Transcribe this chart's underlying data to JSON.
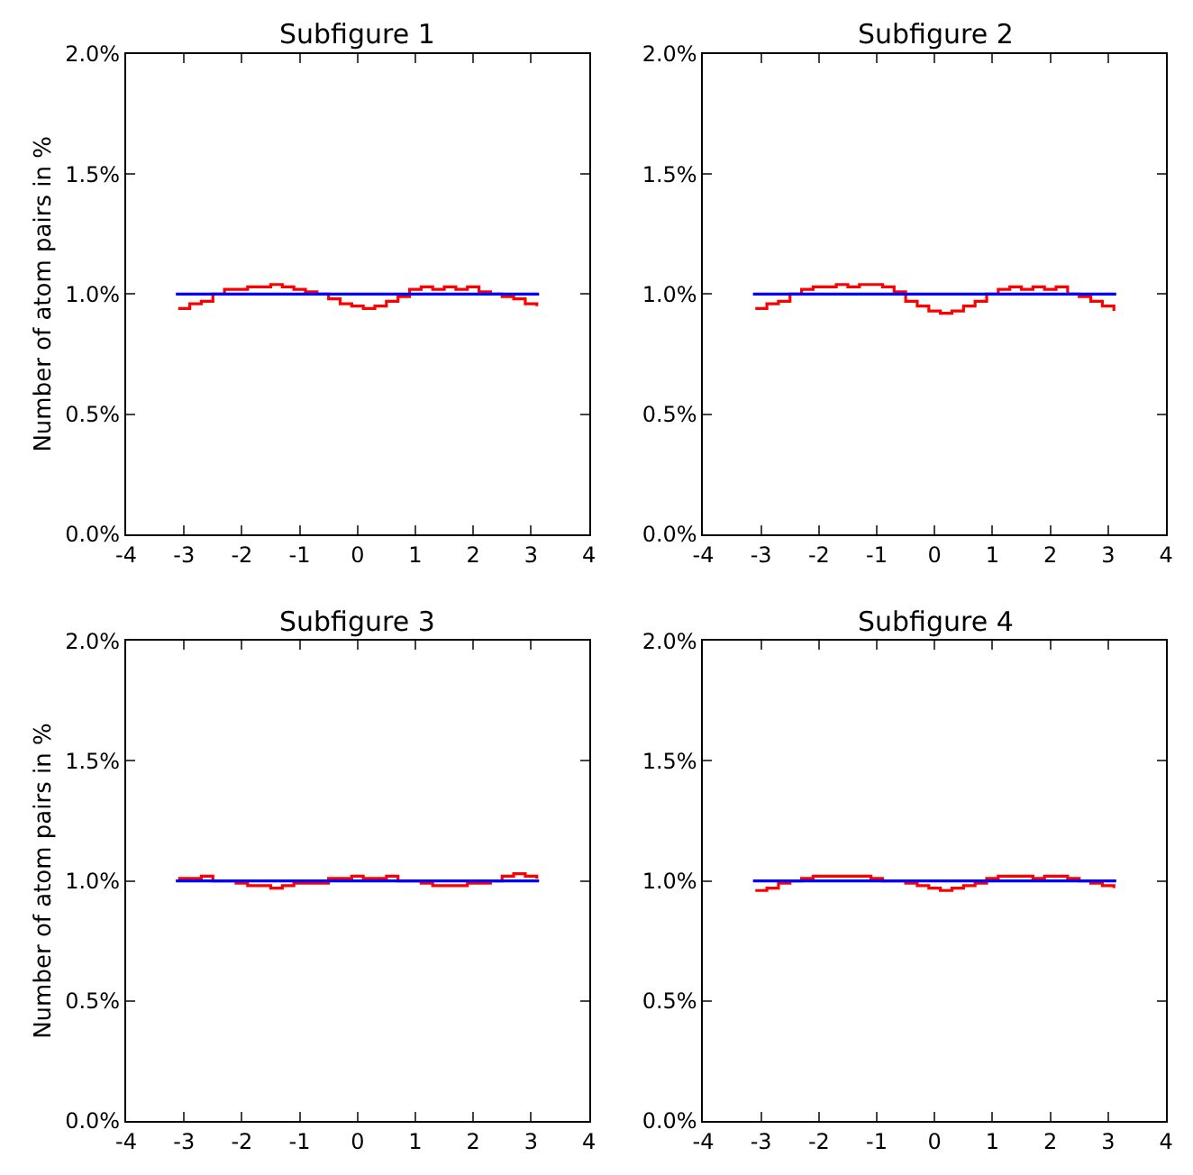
{
  "chart_data": [
    {
      "type": "step",
      "title": "Subfigure 1",
      "ylabel": "Number of atom pairs in %",
      "xlim": [
        -4,
        4
      ],
      "xticks": [
        -4,
        -3,
        -2,
        -1,
        0,
        1,
        2,
        3,
        4
      ],
      "ylim": [
        0,
        2
      ],
      "yticks": [
        {
          "value": 0,
          "label": "0.0%"
        },
        {
          "value": 0.5,
          "label": "0.5%"
        },
        {
          "value": 1,
          "label": "1.0%"
        },
        {
          "value": 1.5,
          "label": "1.5%"
        },
        {
          "value": 2,
          "label": "2.0%"
        }
      ],
      "series": [
        {
          "color": "#ff0000",
          "x": [
            -3.1,
            -2.9,
            -2.7,
            -2.5,
            -2.3,
            -2.1,
            -1.9,
            -1.7,
            -1.5,
            -1.3,
            -1.1,
            -0.9,
            -0.7,
            -0.5,
            -0.3,
            -0.1,
            0.1,
            0.3,
            0.5,
            0.7,
            0.9,
            1.1,
            1.3,
            1.5,
            1.7,
            1.9,
            2.1,
            2.3,
            2.5,
            2.7,
            2.9,
            3.1
          ],
          "values": [
            0.94,
            0.96,
            0.97,
            1.0,
            1.02,
            1.02,
            1.03,
            1.03,
            1.04,
            1.03,
            1.02,
            1.01,
            1.0,
            0.98,
            0.96,
            0.95,
            0.94,
            0.95,
            0.97,
            0.99,
            1.02,
            1.03,
            1.02,
            1.03,
            1.02,
            1.03,
            1.01,
            1.0,
            0.99,
            0.98,
            0.96,
            0.95
          ]
        },
        {
          "type": "line",
          "color": "#0000ff",
          "x": [
            -3.14,
            3.14
          ],
          "values": [
            1.0,
            1.0
          ]
        }
      ]
    },
    {
      "type": "step",
      "title": "Subfigure 2",
      "xlim": [
        -4,
        4
      ],
      "xticks": [
        -4,
        -3,
        -2,
        -1,
        0,
        1,
        2,
        3,
        4
      ],
      "ylim": [
        0,
        2
      ],
      "yticks": [
        {
          "value": 0,
          "label": "0.0%"
        },
        {
          "value": 0.5,
          "label": "0.5%"
        },
        {
          "value": 1,
          "label": "1.0%"
        },
        {
          "value": 1.5,
          "label": "1.5%"
        },
        {
          "value": 2,
          "label": "2.0%"
        }
      ],
      "series": [
        {
          "color": "#ff0000",
          "x": [
            -3.1,
            -2.9,
            -2.7,
            -2.5,
            -2.3,
            -2.1,
            -1.9,
            -1.7,
            -1.5,
            -1.3,
            -1.1,
            -0.9,
            -0.7,
            -0.5,
            -0.3,
            -0.1,
            0.1,
            0.3,
            0.5,
            0.7,
            0.9,
            1.1,
            1.3,
            1.5,
            1.7,
            1.9,
            2.1,
            2.3,
            2.5,
            2.7,
            2.9,
            3.1
          ],
          "values": [
            0.94,
            0.96,
            0.97,
            1.0,
            1.02,
            1.03,
            1.03,
            1.04,
            1.03,
            1.04,
            1.04,
            1.03,
            1.01,
            0.97,
            0.95,
            0.93,
            0.92,
            0.93,
            0.95,
            0.97,
            1.0,
            1.02,
            1.03,
            1.02,
            1.03,
            1.02,
            1.03,
            1.0,
            0.99,
            0.97,
            0.95,
            0.93
          ]
        },
        {
          "type": "line",
          "color": "#0000ff",
          "x": [
            -3.14,
            3.14
          ],
          "values": [
            1.0,
            1.0
          ]
        }
      ]
    },
    {
      "type": "step",
      "title": "Subfigure 3",
      "ylabel": "Number of atom pairs in %",
      "xlim": [
        -4,
        4
      ],
      "xticks": [
        -4,
        -3,
        -2,
        -1,
        0,
        1,
        2,
        3,
        4
      ],
      "ylim": [
        0,
        2
      ],
      "yticks": [
        {
          "value": 0,
          "label": "0.0%"
        },
        {
          "value": 0.5,
          "label": "0.5%"
        },
        {
          "value": 1,
          "label": "1.0%"
        },
        {
          "value": 1.5,
          "label": "1.5%"
        },
        {
          "value": 2,
          "label": "2.0%"
        }
      ],
      "series": [
        {
          "color": "#ff0000",
          "x": [
            -3.1,
            -2.9,
            -2.7,
            -2.5,
            -2.3,
            -2.1,
            -1.9,
            -1.7,
            -1.5,
            -1.3,
            -1.1,
            -0.9,
            -0.7,
            -0.5,
            -0.3,
            -0.1,
            0.1,
            0.3,
            0.5,
            0.7,
            0.9,
            1.1,
            1.3,
            1.5,
            1.7,
            1.9,
            2.1,
            2.3,
            2.5,
            2.7,
            2.9,
            3.1
          ],
          "values": [
            1.01,
            1.01,
            1.02,
            1.0,
            1.0,
            0.99,
            0.98,
            0.98,
            0.97,
            0.98,
            0.99,
            0.99,
            0.99,
            1.01,
            1.01,
            1.02,
            1.01,
            1.01,
            1.02,
            1.0,
            1.0,
            0.99,
            0.98,
            0.98,
            0.98,
            0.99,
            0.99,
            1.0,
            1.02,
            1.03,
            1.02,
            1.01
          ]
        },
        {
          "type": "line",
          "color": "#0000ff",
          "x": [
            -3.14,
            3.14
          ],
          "values": [
            1.0,
            1.0
          ]
        }
      ]
    },
    {
      "type": "step",
      "title": "Subfigure 4",
      "xlim": [
        -4,
        4
      ],
      "xticks": [
        -4,
        -3,
        -2,
        -1,
        0,
        1,
        2,
        3,
        4
      ],
      "ylim": [
        0,
        2
      ],
      "yticks": [
        {
          "value": 0,
          "label": "0.0%"
        },
        {
          "value": 0.5,
          "label": "0.5%"
        },
        {
          "value": 1,
          "label": "1.0%"
        },
        {
          "value": 1.5,
          "label": "1.5%"
        },
        {
          "value": 2,
          "label": "2.0%"
        }
      ],
      "series": [
        {
          "color": "#ff0000",
          "x": [
            -3.1,
            -2.9,
            -2.7,
            -2.5,
            -2.3,
            -2.1,
            -1.9,
            -1.7,
            -1.5,
            -1.3,
            -1.1,
            -0.9,
            -0.7,
            -0.5,
            -0.3,
            -0.1,
            0.1,
            0.3,
            0.5,
            0.7,
            0.9,
            1.1,
            1.3,
            1.5,
            1.7,
            1.9,
            2.1,
            2.3,
            2.5,
            2.7,
            2.9,
            3.1
          ],
          "values": [
            0.96,
            0.97,
            0.99,
            1.0,
            1.01,
            1.02,
            1.02,
            1.02,
            1.02,
            1.02,
            1.01,
            1.0,
            1.0,
            0.99,
            0.98,
            0.97,
            0.96,
            0.97,
            0.98,
            0.99,
            1.01,
            1.02,
            1.02,
            1.02,
            1.01,
            1.02,
            1.02,
            1.01,
            1.0,
            0.99,
            0.98,
            0.97
          ]
        },
        {
          "type": "line",
          "color": "#0000ff",
          "x": [
            -3.14,
            3.14
          ],
          "values": [
            1.0,
            1.0
          ]
        }
      ]
    }
  ]
}
